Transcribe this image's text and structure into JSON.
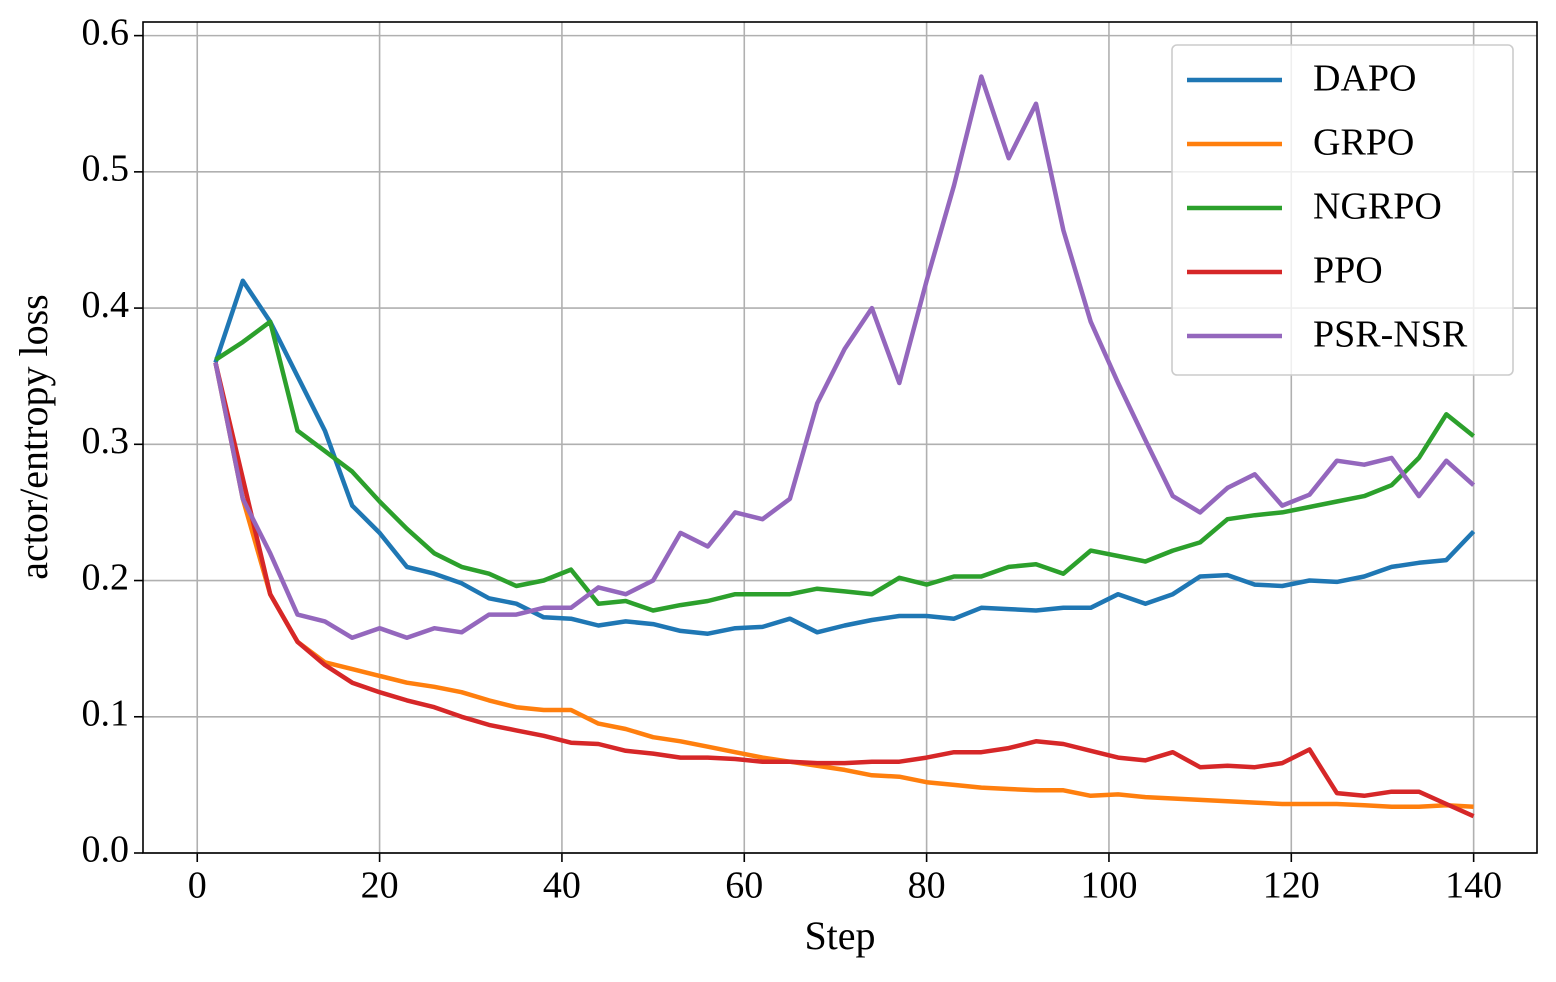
{
  "chart_data": {
    "type": "line",
    "x_label": "Step",
    "y_label": "actor/entropy loss",
    "x": [
      2,
      5,
      8,
      11,
      14,
      17,
      20,
      23,
      26,
      29,
      32,
      35,
      38,
      41,
      44,
      47,
      50,
      53,
      56,
      59,
      62,
      65,
      68,
      71,
      74,
      77,
      80,
      83,
      86,
      89,
      92,
      95,
      98,
      101,
      104,
      107,
      110,
      113,
      116,
      119,
      122,
      125,
      128,
      131,
      134,
      137,
      140
    ],
    "series": [
      {
        "name": "DAPO",
        "color": "#1f77b4",
        "values": [
          0.36,
          0.42,
          0.39,
          0.35,
          0.31,
          0.255,
          0.235,
          0.21,
          0.205,
          0.198,
          0.187,
          0.183,
          0.173,
          0.172,
          0.167,
          0.17,
          0.168,
          0.163,
          0.161,
          0.165,
          0.166,
          0.172,
          0.162,
          0.167,
          0.171,
          0.174,
          0.174,
          0.172,
          0.18,
          0.179,
          0.178,
          0.18,
          0.18,
          0.19,
          0.183,
          0.19,
          0.203,
          0.204,
          0.197,
          0.196,
          0.2,
          0.199,
          0.203,
          0.21,
          0.213,
          0.215,
          0.236
        ]
      },
      {
        "name": "GRPO",
        "color": "#ff7f0e",
        "values": [
          0.36,
          0.26,
          0.19,
          0.155,
          0.14,
          0.135,
          0.13,
          0.125,
          0.122,
          0.118,
          0.112,
          0.107,
          0.105,
          0.105,
          0.095,
          0.091,
          0.085,
          0.082,
          0.078,
          0.074,
          0.07,
          0.067,
          0.064,
          0.061,
          0.057,
          0.056,
          0.052,
          0.05,
          0.048,
          0.047,
          0.046,
          0.046,
          0.042,
          0.043,
          0.041,
          0.04,
          0.039,
          0.038,
          0.037,
          0.036,
          0.036,
          0.036,
          0.035,
          0.034,
          0.034,
          0.035,
          0.034
        ]
      },
      {
        "name": "NGRPO",
        "color": "#2ca02c",
        "values": [
          0.362,
          0.375,
          0.39,
          0.31,
          0.295,
          0.28,
          0.258,
          0.238,
          0.22,
          0.21,
          0.205,
          0.196,
          0.2,
          0.208,
          0.183,
          0.185,
          0.178,
          0.182,
          0.185,
          0.19,
          0.19,
          0.19,
          0.194,
          0.192,
          0.19,
          0.202,
          0.197,
          0.203,
          0.203,
          0.21,
          0.212,
          0.205,
          0.222,
          0.218,
          0.214,
          0.222,
          0.228,
          0.245,
          0.248,
          0.25,
          0.254,
          0.258,
          0.262,
          0.27,
          0.29,
          0.322,
          0.306
        ]
      },
      {
        "name": "PPO",
        "color": "#d62728",
        "values": [
          0.36,
          0.275,
          0.19,
          0.155,
          0.138,
          0.125,
          0.118,
          0.112,
          0.107,
          0.1,
          0.094,
          0.09,
          0.086,
          0.081,
          0.08,
          0.075,
          0.073,
          0.07,
          0.07,
          0.069,
          0.067,
          0.067,
          0.066,
          0.066,
          0.067,
          0.067,
          0.07,
          0.074,
          0.074,
          0.077,
          0.082,
          0.08,
          0.075,
          0.07,
          0.068,
          0.074,
          0.063,
          0.064,
          0.063,
          0.066,
          0.076,
          0.044,
          0.042,
          0.045,
          0.045,
          0.036,
          0.027
        ]
      },
      {
        "name": "PSR-NSR",
        "color": "#9467bd",
        "values": [
          0.36,
          0.26,
          0.22,
          0.175,
          0.17,
          0.158,
          0.165,
          0.158,
          0.165,
          0.162,
          0.175,
          0.175,
          0.18,
          0.18,
          0.195,
          0.19,
          0.2,
          0.235,
          0.225,
          0.25,
          0.245,
          0.26,
          0.33,
          0.37,
          0.4,
          0.345,
          0.42,
          0.49,
          0.57,
          0.51,
          0.55,
          0.457,
          0.39,
          0.345,
          0.303,
          0.262,
          0.25,
          0.268,
          0.278,
          0.255,
          0.263,
          0.288,
          0.285,
          0.29,
          0.262,
          0.288,
          0.27
        ]
      }
    ],
    "xlim": [
      -5.95,
      146.95
    ],
    "xticks": [
      0,
      20,
      40,
      60,
      80,
      100,
      120,
      140
    ],
    "ylim": [
      0,
      0.61
    ],
    "yticks": [
      {
        "value": 0,
        "label": "0.0"
      },
      0.1,
      0.2,
      0.3,
      0.4,
      0.5,
      0.6
    ],
    "grid": true,
    "legend": "upper right"
  }
}
